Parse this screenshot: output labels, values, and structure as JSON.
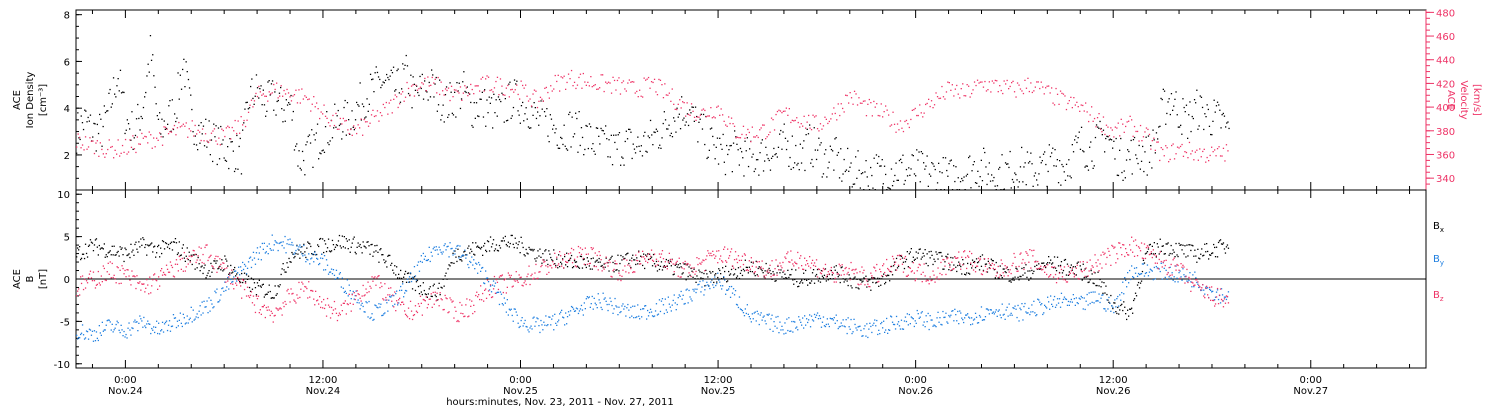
{
  "title": "",
  "colors": {
    "black": "#000000",
    "pink": "#ee3366",
    "blue": "#1f7fe0"
  },
  "x_axis": {
    "label": "hours:minutes, Nov. 23, 2011 - Nov. 27, 2011",
    "ticks": [
      {
        "time": "0:00",
        "date": "Nov.24",
        "hour": 24
      },
      {
        "time": "12:00",
        "date": "Nov.24",
        "hour": 36
      },
      {
        "time": "0:00",
        "date": "Nov.25",
        "hour": 48
      },
      {
        "time": "12:00",
        "date": "Nov.25",
        "hour": 60
      },
      {
        "time": "0:00",
        "date": "Nov.26",
        "hour": 72
      },
      {
        "time": "12:00",
        "date": "Nov.26",
        "hour": 84
      },
      {
        "time": "0:00",
        "date": "Nov.27",
        "hour": 96
      }
    ]
  },
  "chart_data": [
    {
      "type": "scatter",
      "panel": "top",
      "x_unit": "hours since Nov. 23, 2011 00:00",
      "xlim": [
        21,
        103
      ],
      "left_axis": {
        "label_line1": "ACE",
        "label_line2": "Ion Density",
        "unit": "[cm⁻³]",
        "ylim": [
          0.5,
          8.2
        ],
        "ticks": [
          2,
          4,
          6,
          8
        ]
      },
      "right_axis": {
        "label_line1": "ACE",
        "label_line2": "Velocity",
        "unit": "[km/s]",
        "ylim": [
          330,
          482
        ],
        "ticks": [
          340,
          360,
          380,
          400,
          420,
          440,
          460,
          480
        ]
      },
      "series": [
        {
          "axis": "left",
          "color": "black",
          "x": [
            21.0,
            21.5,
            22.0,
            22.5,
            23.0,
            23.5,
            24.0,
            24.5,
            25.0,
            25.5,
            26.0,
            26.5,
            27.0,
            27.5,
            28.0,
            28.5,
            29.0,
            29.5,
            30.0,
            30.5,
            31.0,
            31.5,
            32.0,
            32.5,
            33.0,
            33.5,
            34.0,
            34.5,
            35.0,
            35.5,
            36.0,
            36.5,
            37.0,
            37.5,
            38.0,
            38.5,
            39.0,
            39.5,
            40.0,
            40.5,
            41.0,
            41.5,
            42.0,
            42.5,
            43.0,
            43.5,
            44.0,
            44.5,
            45.0,
            45.5,
            46.0,
            46.5,
            47.0,
            47.5,
            48.0,
            48.5,
            49.0,
            49.5,
            50.0,
            50.5,
            51.0,
            51.5,
            52.0,
            52.5,
            53.0,
            53.5,
            54.0,
            54.5,
            55.0,
            55.5,
            56.0,
            56.5,
            57.0,
            57.5,
            58.0,
            58.5,
            59.0,
            59.5,
            60.0,
            60.5,
            61.0,
            61.5,
            62.0,
            62.5,
            63.0,
            63.5,
            64.0,
            64.5,
            65.0,
            65.5,
            66.0,
            66.5,
            67.0,
            67.5,
            68.0,
            68.5,
            69.0,
            69.5,
            70.0,
            70.5,
            71.0,
            71.5,
            72.0,
            72.5,
            73.0,
            73.5,
            74.0,
            74.5,
            75.0,
            75.5,
            76.0,
            76.5,
            77.0,
            77.5,
            78.0,
            78.5,
            79.0,
            79.5,
            80.0,
            80.5,
            81.0,
            81.5,
            82.0,
            82.5,
            83.0,
            83.5,
            84.0,
            84.5,
            85.0,
            85.5,
            86.0,
            86.5,
            87.0,
            87.5,
            88.0,
            88.5,
            89.0,
            89.5,
            90.0,
            90.5,
            91.0
          ],
          "y": [
            3.0,
            3.5,
            3.0,
            3.0,
            4.0,
            5.5,
            3.5,
            3.0,
            4.0,
            6.5,
            3.0,
            3.5,
            4.0,
            6.0,
            3.5,
            3.0,
            2.8,
            2.5,
            2.3,
            2.2,
            2.0,
            4.5,
            4.8,
            4.2,
            4.5,
            4.0,
            4.2,
            1.8,
            2.0,
            2.5,
            3.0,
            3.2,
            3.5,
            3.5,
            4.0,
            4.5,
            4.8,
            5.2,
            5.0,
            4.8,
            5.5,
            4.5,
            4.8,
            5.0,
            4.5,
            4.2,
            4.5,
            4.8,
            4.0,
            4.2,
            4.0,
            3.8,
            4.0,
            4.5,
            4.2,
            4.0,
            3.5,
            3.5,
            3.2,
            3.0,
            3.2,
            3.0,
            2.8,
            2.5,
            2.5,
            2.2,
            2.4,
            2.5,
            2.3,
            2.5,
            2.8,
            3.0,
            3.5,
            3.8,
            4.0,
            3.5,
            3.0,
            2.5,
            2.2,
            2.0,
            2.2,
            2.0,
            1.8,
            2.0,
            2.2,
            2.0,
            2.5,
            2.2,
            2.0,
            2.5,
            2.2,
            1.8,
            2.0,
            1.5,
            1.4,
            1.3,
            1.2,
            1.3,
            1.2,
            1.4,
            1.4,
            1.3,
            1.4,
            1.3,
            1.2,
            1.2,
            1.0,
            1.2,
            1.3,
            1.5,
            1.5,
            1.3,
            1.2,
            1.3,
            1.5,
            1.5,
            1.3,
            1.4,
            1.6,
            1.8,
            1.5,
            2.0,
            2.5,
            2.2,
            2.5,
            3.0,
            2.2,
            1.8,
            2.0,
            2.2,
            2.0,
            2.5,
            4.0,
            4.5,
            3.8,
            3.5,
            4.0,
            3.8,
            3.6,
            3.5,
            3.0
          ]
        },
        {
          "axis": "right",
          "color": "pink",
          "x": [
            21.0,
            22.0,
            23.0,
            24.0,
            25.0,
            26.0,
            27.0,
            28.0,
            29.0,
            30.0,
            31.0,
            32.0,
            33.0,
            34.0,
            35.0,
            36.0,
            37.0,
            38.0,
            39.0,
            40.0,
            41.0,
            42.0,
            43.0,
            44.0,
            45.0,
            46.0,
            47.0,
            48.0,
            49.0,
            50.0,
            51.0,
            52.0,
            53.0,
            54.0,
            55.0,
            56.0,
            57.0,
            58.0,
            59.0,
            60.0,
            61.0,
            62.0,
            63.0,
            64.0,
            65.0,
            66.0,
            67.0,
            68.0,
            69.0,
            70.0,
            71.0,
            72.0,
            73.0,
            74.0,
            75.0,
            76.0,
            77.0,
            78.0,
            79.0,
            80.0,
            81.0,
            82.0,
            83.0,
            84.0,
            85.0,
            86.0,
            87.0,
            88.0,
            89.0,
            90.0,
            91.0
          ],
          "y": [
            372,
            368,
            365,
            366,
            372,
            375,
            380,
            382,
            378,
            375,
            385,
            410,
            415,
            412,
            408,
            395,
            385,
            380,
            390,
            400,
            415,
            420,
            418,
            410,
            415,
            420,
            418,
            415,
            405,
            420,
            425,
            422,
            420,
            418,
            415,
            420,
            410,
            400,
            395,
            400,
            380,
            378,
            382,
            395,
            390,
            385,
            395,
            410,
            400,
            395,
            385,
            395,
            405,
            415,
            412,
            420,
            418,
            415,
            420,
            412,
            405,
            400,
            390,
            380,
            385,
            375,
            360,
            365,
            362,
            360,
            362
          ]
        }
      ]
    },
    {
      "type": "scatter",
      "panel": "bottom",
      "x_unit": "hours since Nov. 23, 2011 00:00",
      "xlim": [
        21,
        103
      ],
      "y_axis": {
        "label_line1": "ACE",
        "label_line2": "B",
        "unit": "[nT]",
        "ylim": [
          -10.5,
          10.5
        ],
        "ticks": [
          -10,
          -5,
          0,
          5,
          10
        ]
      },
      "legend": {
        "placement": "right",
        "entries": [
          {
            "base": "B",
            "sub": "x",
            "color": "black"
          },
          {
            "base": "B",
            "sub": "y",
            "color": "blue"
          },
          {
            "base": "B",
            "sub": "z",
            "color": "pink"
          }
        ]
      },
      "series": [
        {
          "name": "Bx",
          "color": "black",
          "x": [
            21.0,
            22.0,
            23.0,
            24.0,
            25.0,
            26.0,
            27.0,
            28.0,
            29.0,
            30.0,
            31.0,
            32.0,
            33.0,
            34.0,
            35.0,
            36.0,
            37.0,
            38.0,
            39.0,
            40.0,
            41.0,
            42.0,
            43.0,
            44.0,
            45.0,
            46.0,
            47.0,
            48.0,
            49.0,
            50.0,
            51.0,
            52.0,
            53.0,
            54.0,
            55.0,
            56.0,
            57.0,
            58.0,
            59.0,
            60.0,
            61.0,
            62.0,
            63.0,
            64.0,
            65.0,
            66.0,
            67.0,
            68.0,
            69.0,
            70.0,
            71.0,
            72.0,
            73.0,
            74.0,
            75.0,
            76.0,
            77.0,
            78.0,
            79.0,
            80.0,
            81.0,
            82.0,
            83.0,
            84.0,
            85.0,
            86.0,
            87.0,
            88.0,
            89.0,
            90.0,
            91.0
          ],
          "y": [
            3.0,
            4.0,
            3.5,
            3.0,
            4.0,
            3.5,
            4.0,
            2.5,
            1.0,
            2.0,
            0.0,
            -1.0,
            -1.5,
            3.0,
            3.5,
            4.0,
            4.5,
            4.0,
            3.5,
            2.0,
            0.0,
            -1.0,
            -1.5,
            3.0,
            3.5,
            4.0,
            4.5,
            4.0,
            3.0,
            2.5,
            2.0,
            2.0,
            1.5,
            2.0,
            2.5,
            2.0,
            1.5,
            1.0,
            0.0,
            0.5,
            1.0,
            1.5,
            1.0,
            0.5,
            0.0,
            0.5,
            1.0,
            0.0,
            -0.5,
            0.0,
            2.0,
            3.0,
            2.5,
            2.0,
            1.5,
            2.0,
            1.0,
            0.5,
            1.0,
            2.0,
            1.5,
            1.0,
            0.0,
            -3.0,
            -4.0,
            3.0,
            4.0,
            3.5,
            3.0,
            3.5,
            4.0
          ]
        },
        {
          "name": "By",
          "color": "blue",
          "x": [
            21.0,
            22.0,
            23.0,
            24.0,
            25.0,
            26.0,
            27.0,
            28.0,
            29.0,
            30.0,
            31.0,
            32.0,
            33.0,
            34.0,
            35.0,
            36.0,
            37.0,
            38.0,
            39.0,
            40.0,
            41.0,
            42.0,
            43.0,
            44.0,
            45.0,
            46.0,
            47.0,
            48.0,
            49.0,
            50.0,
            51.0,
            52.0,
            53.0,
            54.0,
            55.0,
            56.0,
            57.0,
            58.0,
            59.0,
            60.0,
            61.0,
            62.0,
            63.0,
            64.0,
            65.0,
            66.0,
            67.0,
            68.0,
            69.0,
            70.0,
            71.0,
            72.0,
            73.0,
            74.0,
            75.0,
            76.0,
            77.0,
            78.0,
            79.0,
            80.0,
            81.0,
            82.0,
            83.0,
            84.0,
            85.0,
            86.0,
            87.0,
            88.0,
            89.0,
            90.0,
            91.0
          ],
          "y": [
            -6.0,
            -6.5,
            -5.5,
            -6.0,
            -5.0,
            -6.0,
            -5.0,
            -4.0,
            -3.0,
            -1.0,
            1.0,
            3.0,
            4.5,
            4.0,
            3.0,
            2.0,
            0.0,
            -2.0,
            -4.0,
            -3.0,
            -1.0,
            2.0,
            4.0,
            3.5,
            2.0,
            0.0,
            -3.0,
            -5.0,
            -5.5,
            -5.0,
            -4.0,
            -3.0,
            -2.5,
            -3.5,
            -4.0,
            -3.5,
            -3.0,
            -2.0,
            -1.0,
            0.0,
            -2.0,
            -4.5,
            -5.0,
            -5.5,
            -5.0,
            -4.5,
            -5.0,
            -5.5,
            -6.0,
            -5.5,
            -5.0,
            -4.5,
            -5.0,
            -4.5,
            -4.5,
            -4.0,
            -3.5,
            -4.0,
            -3.5,
            -3.0,
            -2.5,
            -3.0,
            -2.0,
            -3.5,
            1.0,
            1.0,
            1.0,
            0.5,
            0.0,
            -1.5,
            -2.0
          ]
        },
        {
          "name": "Bz",
          "color": "pink",
          "x": [
            21.0,
            22.0,
            23.0,
            24.0,
            25.0,
            26.0,
            27.0,
            28.0,
            29.0,
            30.0,
            31.0,
            32.0,
            33.0,
            34.0,
            35.0,
            36.0,
            37.0,
            38.0,
            39.0,
            40.0,
            41.0,
            42.0,
            43.0,
            44.0,
            45.0,
            46.0,
            47.0,
            48.0,
            49.0,
            50.0,
            51.0,
            52.0,
            53.0,
            54.0,
            55.0,
            56.0,
            57.0,
            58.0,
            59.0,
            60.0,
            61.0,
            62.0,
            63.0,
            64.0,
            65.0,
            66.0,
            67.0,
            68.0,
            69.0,
            70.0,
            71.0,
            72.0,
            73.0,
            74.0,
            75.0,
            76.0,
            77.0,
            78.0,
            79.0,
            80.0,
            81.0,
            82.0,
            83.0,
            84.0,
            85.0,
            86.0,
            87.0,
            88.0,
            89.0,
            90.0,
            91.0
          ],
          "y": [
            -1.0,
            0.0,
            1.0,
            0.5,
            -1.0,
            0.0,
            1.5,
            2.5,
            3.0,
            1.0,
            -1.0,
            -3.0,
            -4.0,
            -2.0,
            -1.0,
            -3.0,
            -4.0,
            -2.0,
            0.0,
            -2.0,
            -4.0,
            -3.0,
            -2.0,
            -4.0,
            -3.0,
            -1.0,
            -0.5,
            0.0,
            1.0,
            2.0,
            2.5,
            3.0,
            2.0,
            1.0,
            2.0,
            3.0,
            2.0,
            1.0,
            2.0,
            3.0,
            2.5,
            2.0,
            1.0,
            2.0,
            2.5,
            1.5,
            0.5,
            1.0,
            0.0,
            1.0,
            2.0,
            1.0,
            0.5,
            2.0,
            2.5,
            1.5,
            1.0,
            2.0,
            2.5,
            1.0,
            0.5,
            1.0,
            2.0,
            3.0,
            4.0,
            3.0,
            2.0,
            1.0,
            -1.0,
            -2.0,
            -2.5
          ]
        }
      ]
    }
  ]
}
